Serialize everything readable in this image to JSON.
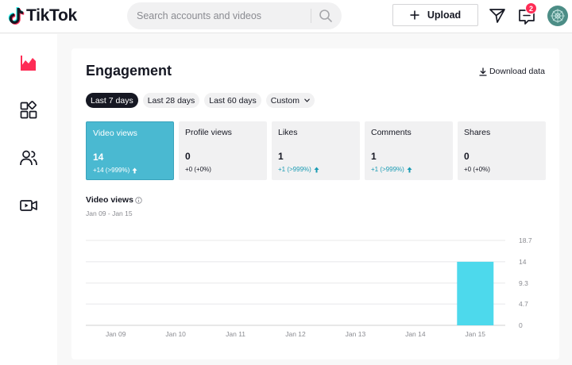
{
  "header": {
    "brand": "TikTok",
    "search": {
      "placeholder": "Search accounts and videos",
      "value": ""
    },
    "upload_label": "Upload",
    "notification_count": "2"
  },
  "sidebar": {
    "items": [
      {
        "name": "analytics",
        "icon": "chart-icon",
        "active": true
      },
      {
        "name": "content",
        "icon": "shapes-icon",
        "active": false
      },
      {
        "name": "followers",
        "icon": "people-icon",
        "active": false
      },
      {
        "name": "live",
        "icon": "video-icon",
        "active": false
      }
    ]
  },
  "engagement": {
    "title": "Engagement",
    "download_label": "Download data",
    "ranges": [
      "Last 7 days",
      "Last 28 days",
      "Last 60 days",
      "Custom"
    ],
    "active_range": "Last 7 days",
    "metrics": [
      {
        "label": "Video views",
        "value": "14",
        "delta": "+14 (>999%)",
        "trend": "up"
      },
      {
        "label": "Profile views",
        "value": "0",
        "delta": "+0 (+0%)",
        "trend": "flat"
      },
      {
        "label": "Likes",
        "value": "1",
        "delta": "+1 (>999%)",
        "trend": "up"
      },
      {
        "label": "Comments",
        "value": "1",
        "delta": "+1 (>999%)",
        "trend": "up"
      },
      {
        "label": "Shares",
        "value": "0",
        "delta": "+0 (+0%)",
        "trend": "flat"
      }
    ],
    "chart_title": "Video views",
    "chart_range": "Jan 09 - Jan 15"
  },
  "colors": {
    "accent": "#fe2c55",
    "active_metric": "#4ab9d1",
    "bar": "#4dd9ec",
    "trend_up": "#1a9bb3"
  },
  "chart_data": {
    "type": "bar",
    "title": "Video views",
    "subtitle": "Jan 09 - Jan 15",
    "categories": [
      "Jan 09",
      "Jan 10",
      "Jan 11",
      "Jan 12",
      "Jan 13",
      "Jan 14",
      "Jan 15"
    ],
    "values": [
      0,
      0,
      0,
      0,
      0,
      0,
      14
    ],
    "y_ticks": [
      "18.7",
      "14",
      "9.3",
      "4.7",
      "0"
    ],
    "ylim": [
      0,
      18.7
    ],
    "grid": true,
    "y_axis_side": "right"
  }
}
